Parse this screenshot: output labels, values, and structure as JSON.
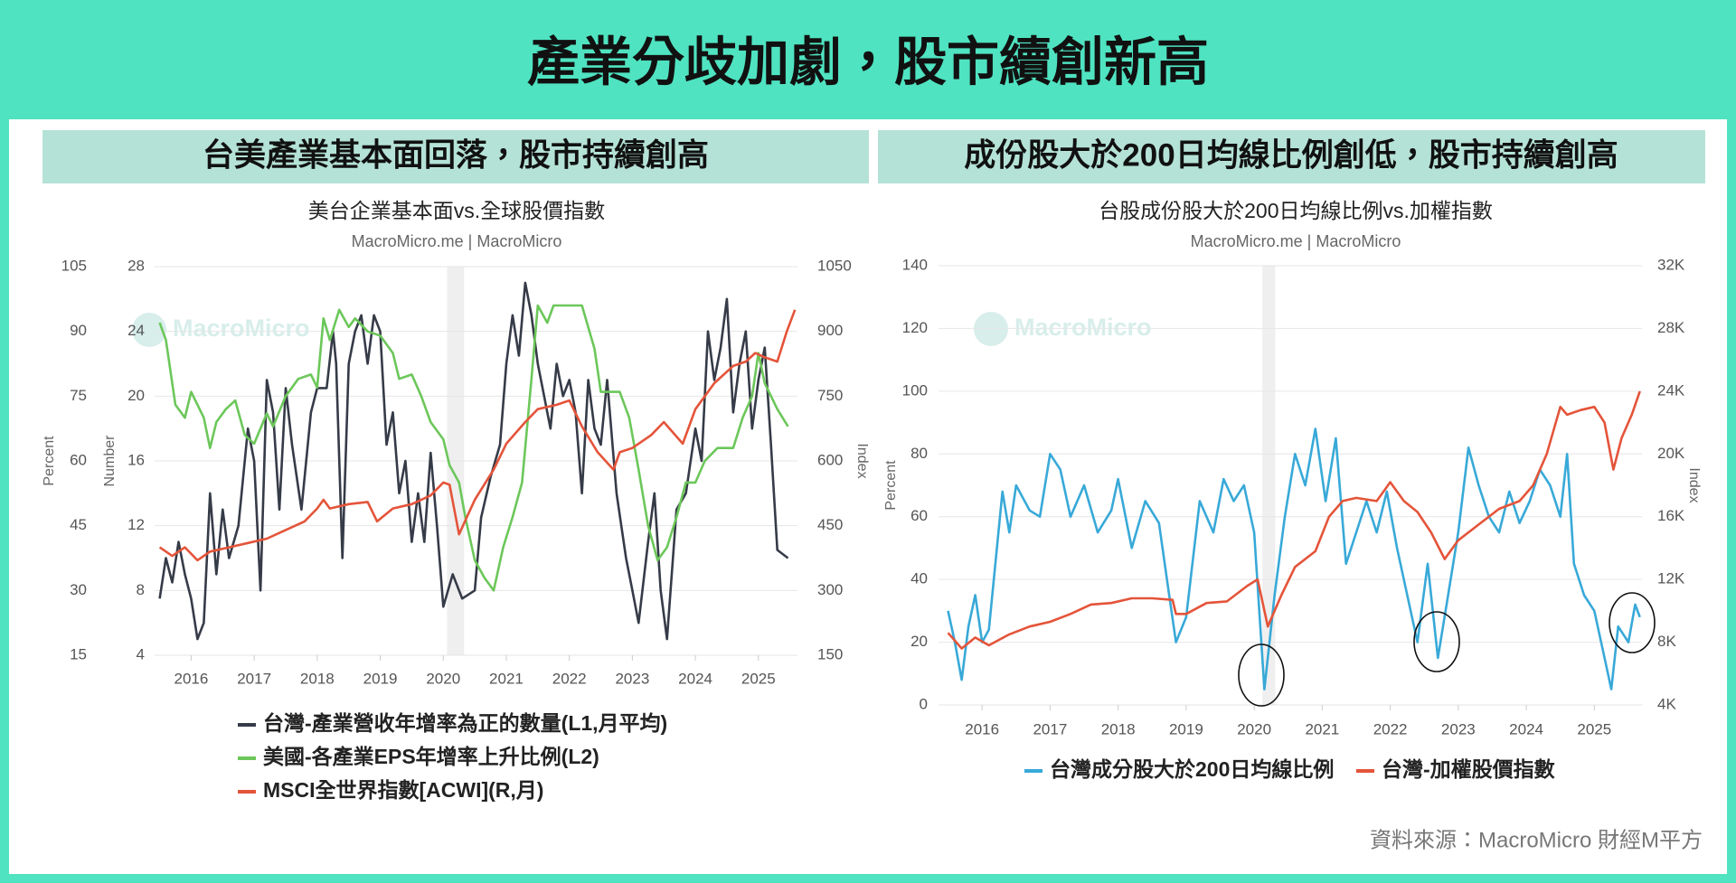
{
  "header": {
    "title": "產業分歧加劇，股市續創新高"
  },
  "source": "資料來源：MacroMicro 財經M平方",
  "chart_data": [
    {
      "type": "line",
      "heading": "台美產業基本面回落，股市持續創高",
      "title": "美台企業基本面vs.全球股價指數",
      "subtitle": "MacroMicro.me | MacroMicro",
      "watermark": "MacroMicro",
      "ylabel": "Percent",
      "y3label": "Number",
      "y2label": "Index",
      "xlim": [
        2015.42,
        2025.62
      ],
      "xticks": [
        2016,
        2017,
        2018,
        2019,
        2020,
        2021,
        2022,
        2023,
        2024,
        2025
      ],
      "ylim": [
        15,
        105
      ],
      "yticks": [
        15,
        30,
        45,
        60,
        75,
        90,
        105
      ],
      "y3lim": [
        4,
        28
      ],
      "y3ticks": [
        4,
        8,
        12,
        16,
        20,
        24,
        28
      ],
      "y2lim": [
        150,
        1050
      ],
      "y2ticks": [
        150,
        300,
        450,
        600,
        750,
        900,
        1050
      ],
      "grid": true,
      "shade": [
        2020.06,
        2020.33
      ],
      "legend": "bottom",
      "series": [
        {
          "name": "台灣-產業營收年增率為正的數量(L1,月平均)",
          "color": "#363b48",
          "axis": "y3",
          "x": [
            2015.5,
            2015.6,
            2015.7,
            2015.8,
            2015.9,
            2016.0,
            2016.1,
            2016.2,
            2016.3,
            2016.4,
            2016.5,
            2016.6,
            2016.75,
            2016.9,
            2017.0,
            2017.1,
            2017.2,
            2017.3,
            2017.4,
            2017.5,
            2017.6,
            2017.75,
            2017.9,
            2018.0,
            2018.15,
            2018.25,
            2018.3,
            2018.4,
            2018.5,
            2018.6,
            2018.7,
            2018.8,
            2018.9,
            2019.0,
            2019.1,
            2019.2,
            2019.3,
            2019.4,
            2019.5,
            2019.6,
            2019.7,
            2019.8,
            2019.9,
            2020.0,
            2020.15,
            2020.3,
            2020.5,
            2020.6,
            2020.75,
            2020.9,
            2021.0,
            2021.1,
            2021.2,
            2021.3,
            2021.4,
            2021.5,
            2021.6,
            2021.7,
            2021.8,
            2021.9,
            2022.0,
            2022.1,
            2022.2,
            2022.3,
            2022.4,
            2022.5,
            2022.6,
            2022.75,
            2022.9,
            2023.0,
            2023.1,
            2023.25,
            2023.35,
            2023.45,
            2023.55,
            2023.7,
            2023.85,
            2024.0,
            2024.1,
            2024.2,
            2024.3,
            2024.4,
            2024.5,
            2024.6,
            2024.7,
            2024.8,
            2024.9,
            2025.0,
            2025.1,
            2025.2,
            2025.3,
            2025.47
          ],
          "values": [
            7.5,
            10,
            8.5,
            11,
            9,
            7.5,
            5,
            6,
            14,
            9,
            13,
            10,
            12,
            18,
            16,
            8,
            21,
            19,
            13,
            20.5,
            17,
            13,
            19,
            20.5,
            20.5,
            24,
            22,
            10,
            22,
            24,
            25,
            22,
            25,
            24,
            17,
            19,
            14,
            16,
            11,
            14,
            11,
            16.5,
            12,
            7,
            9,
            7.5,
            8,
            12.5,
            15,
            17,
            22,
            25,
            22.5,
            27,
            25,
            22,
            20,
            18,
            22,
            20,
            21,
            19,
            14,
            21,
            18,
            17,
            21,
            14,
            10,
            8,
            6,
            11,
            14,
            8,
            5,
            13,
            14,
            18,
            16,
            24,
            21,
            23,
            26,
            19,
            22,
            24,
            18,
            21,
            23,
            17,
            10.5,
            10
          ]
        },
        {
          "name": "美國-各產業EPS年增率上升比例(L2)",
          "color": "#6cc75a",
          "axis": "y",
          "x": [
            2015.5,
            2015.6,
            2015.75,
            2015.9,
            2016.0,
            2016.2,
            2016.3,
            2016.4,
            2016.55,
            2016.7,
            2016.85,
            2017.0,
            2017.2,
            2017.3,
            2017.5,
            2017.7,
            2017.9,
            2018.0,
            2018.1,
            2018.2,
            2018.35,
            2018.5,
            2018.6,
            2018.8,
            2019.0,
            2019.2,
            2019.3,
            2019.5,
            2019.65,
            2019.8,
            2020.0,
            2020.1,
            2020.25,
            2020.35,
            2020.5,
            2020.65,
            2020.8,
            2020.95,
            2021.1,
            2021.25,
            2021.4,
            2021.5,
            2021.65,
            2021.75,
            2022.0,
            2022.2,
            2022.4,
            2022.5,
            2022.8,
            2022.95,
            2023.1,
            2023.25,
            2023.4,
            2023.55,
            2023.7,
            2023.85,
            2024.0,
            2024.15,
            2024.35,
            2024.6,
            2024.75,
            2024.9,
            2025.0,
            2025.1,
            2025.3,
            2025.47
          ],
          "values": [
            92,
            88,
            73,
            70,
            76,
            70,
            63,
            69,
            72,
            74,
            66,
            64,
            71,
            68,
            75,
            79,
            80,
            77,
            93,
            88,
            95,
            91,
            93,
            90,
            89,
            85,
            79,
            80,
            75,
            69,
            65,
            59,
            55,
            47,
            37,
            33,
            30,
            40,
            47,
            55,
            79,
            96,
            92,
            96,
            96,
            96,
            86,
            76,
            76,
            70,
            58,
            45,
            37,
            40,
            47,
            55,
            55,
            60,
            63,
            63,
            70,
            75,
            85,
            78,
            72,
            68
          ]
        },
        {
          "name": "MSCI全世界指數[ACWI](R,月)",
          "color": "#e4543a",
          "axis": "y2",
          "x": [
            2015.5,
            2015.7,
            2015.9,
            2016.1,
            2016.3,
            2016.6,
            2016.9,
            2017.2,
            2017.5,
            2017.8,
            2018.0,
            2018.1,
            2018.2,
            2018.5,
            2018.8,
            2018.95,
            2019.2,
            2019.5,
            2019.8,
            2020.0,
            2020.1,
            2020.25,
            2020.5,
            2020.8,
            2021.0,
            2021.3,
            2021.5,
            2021.8,
            2022.0,
            2022.2,
            2022.45,
            2022.7,
            2022.8,
            2023.0,
            2023.3,
            2023.5,
            2023.8,
            2024.0,
            2024.3,
            2024.6,
            2024.8,
            2024.95,
            2025.1,
            2025.3,
            2025.45,
            2025.58
          ],
          "values": [
            400,
            380,
            400,
            370,
            390,
            400,
            410,
            420,
            440,
            460,
            490,
            510,
            490,
            500,
            505,
            460,
            490,
            500,
            520,
            550,
            545,
            430,
            510,
            580,
            640,
            690,
            720,
            730,
            740,
            680,
            620,
            580,
            620,
            630,
            660,
            690,
            640,
            720,
            780,
            820,
            830,
            850,
            840,
            830,
            900,
            950
          ]
        }
      ]
    },
    {
      "type": "line",
      "heading": "成份股大於200日均線比例創低，股市持續創高",
      "title": "台股成份股大於200日均線比例vs.加權指數",
      "subtitle": "MacroMicro.me | MacroMicro",
      "watermark": "MacroMicro",
      "ylabel": "Percent",
      "y2label": "Index",
      "xlim": [
        2015.36,
        2025.7
      ],
      "xticks": [
        2016,
        2017,
        2018,
        2019,
        2020,
        2021,
        2022,
        2023,
        2024,
        2025
      ],
      "ylim": [
        0,
        140
      ],
      "yticks": [
        0,
        20,
        40,
        60,
        80,
        100,
        120,
        140
      ],
      "y2lim": [
        4000,
        32000
      ],
      "y2ticks": [
        {
          "value": 4000,
          "label": "4K"
        },
        {
          "value": 8000,
          "label": "8K"
        },
        {
          "value": 12000,
          "label": "12K"
        },
        {
          "value": 16000,
          "label": "16K"
        },
        {
          "value": 20000,
          "label": "20K"
        },
        {
          "value": 24000,
          "label": "24K"
        },
        {
          "value": 28000,
          "label": "28K"
        },
        {
          "value": 32000,
          "label": "32K"
        }
      ],
      "grid": true,
      "shade": [
        2020.12,
        2020.31
      ],
      "legend": "bottom",
      "series": [
        {
          "name": "台灣成分股大於200日均線比例",
          "color": "#38a9d8",
          "axis": "y",
          "x": [
            2015.5,
            2015.6,
            2015.7,
            2015.8,
            2015.9,
            2016.0,
            2016.1,
            2016.3,
            2016.4,
            2016.5,
            2016.7,
            2016.85,
            2017.0,
            2017.15,
            2017.3,
            2017.5,
            2017.7,
            2017.9,
            2018.0,
            2018.2,
            2018.4,
            2018.6,
            2018.75,
            2018.85,
            2019.0,
            2019.2,
            2019.4,
            2019.55,
            2019.7,
            2019.85,
            2020.0,
            2020.15,
            2020.3,
            2020.45,
            2020.6,
            2020.75,
            2020.9,
            2021.05,
            2021.2,
            2021.35,
            2021.5,
            2021.65,
            2021.8,
            2021.95,
            2022.1,
            2022.25,
            2022.4,
            2022.55,
            2022.7,
            2022.85,
            2023.0,
            2023.15,
            2023.3,
            2023.45,
            2023.6,
            2023.75,
            2023.9,
            2024.05,
            2024.2,
            2024.35,
            2024.5,
            2024.6,
            2024.7,
            2024.85,
            2025.0,
            2025.15,
            2025.25,
            2025.35,
            2025.5,
            2025.6,
            2025.67
          ],
          "values": [
            30,
            20,
            8,
            25,
            35,
            20,
            24,
            68,
            55,
            70,
            62,
            60,
            80,
            75,
            60,
            70,
            55,
            62,
            72,
            50,
            65,
            58,
            35,
            20,
            28,
            65,
            55,
            72,
            65,
            70,
            55,
            5,
            35,
            60,
            80,
            70,
            88,
            65,
            85,
            45,
            55,
            65,
            55,
            68,
            50,
            35,
            20,
            45,
            15,
            35,
            55,
            82,
            70,
            60,
            55,
            68,
            58,
            65,
            75,
            70,
            60,
            80,
            45,
            35,
            30,
            15,
            5,
            25,
            20,
            32,
            28
          ]
        },
        {
          "name": "台灣-加權股價指數",
          "color": "#e4543a",
          "axis": "y2",
          "x": [
            2015.5,
            2015.7,
            2015.9,
            2016.1,
            2016.4,
            2016.7,
            2017.0,
            2017.3,
            2017.6,
            2017.9,
            2018.2,
            2018.5,
            2018.8,
            2018.85,
            2019.0,
            2019.3,
            2019.6,
            2019.9,
            2020.05,
            2020.2,
            2020.4,
            2020.6,
            2020.9,
            2021.1,
            2021.3,
            2021.5,
            2021.8,
            2022.0,
            2022.2,
            2022.4,
            2022.6,
            2022.8,
            2023.0,
            2023.3,
            2023.6,
            2023.9,
            2024.1,
            2024.3,
            2024.5,
            2024.6,
            2024.8,
            2025.0,
            2025.15,
            2025.28,
            2025.4,
            2025.55,
            2025.67
          ],
          "values": [
            8600,
            7600,
            8300,
            7800,
            8500,
            9000,
            9300,
            9800,
            10400,
            10500,
            10800,
            10800,
            10700,
            9800,
            9800,
            10500,
            10600,
            11600,
            12000,
            9000,
            11000,
            12800,
            13800,
            16000,
            17000,
            17200,
            17000,
            18200,
            17000,
            16300,
            15000,
            13300,
            14500,
            15500,
            16500,
            17000,
            18000,
            20000,
            23000,
            22500,
            22800,
            23000,
            22000,
            19000,
            21000,
            22500,
            24000
          ]
        }
      ]
    }
  ]
}
